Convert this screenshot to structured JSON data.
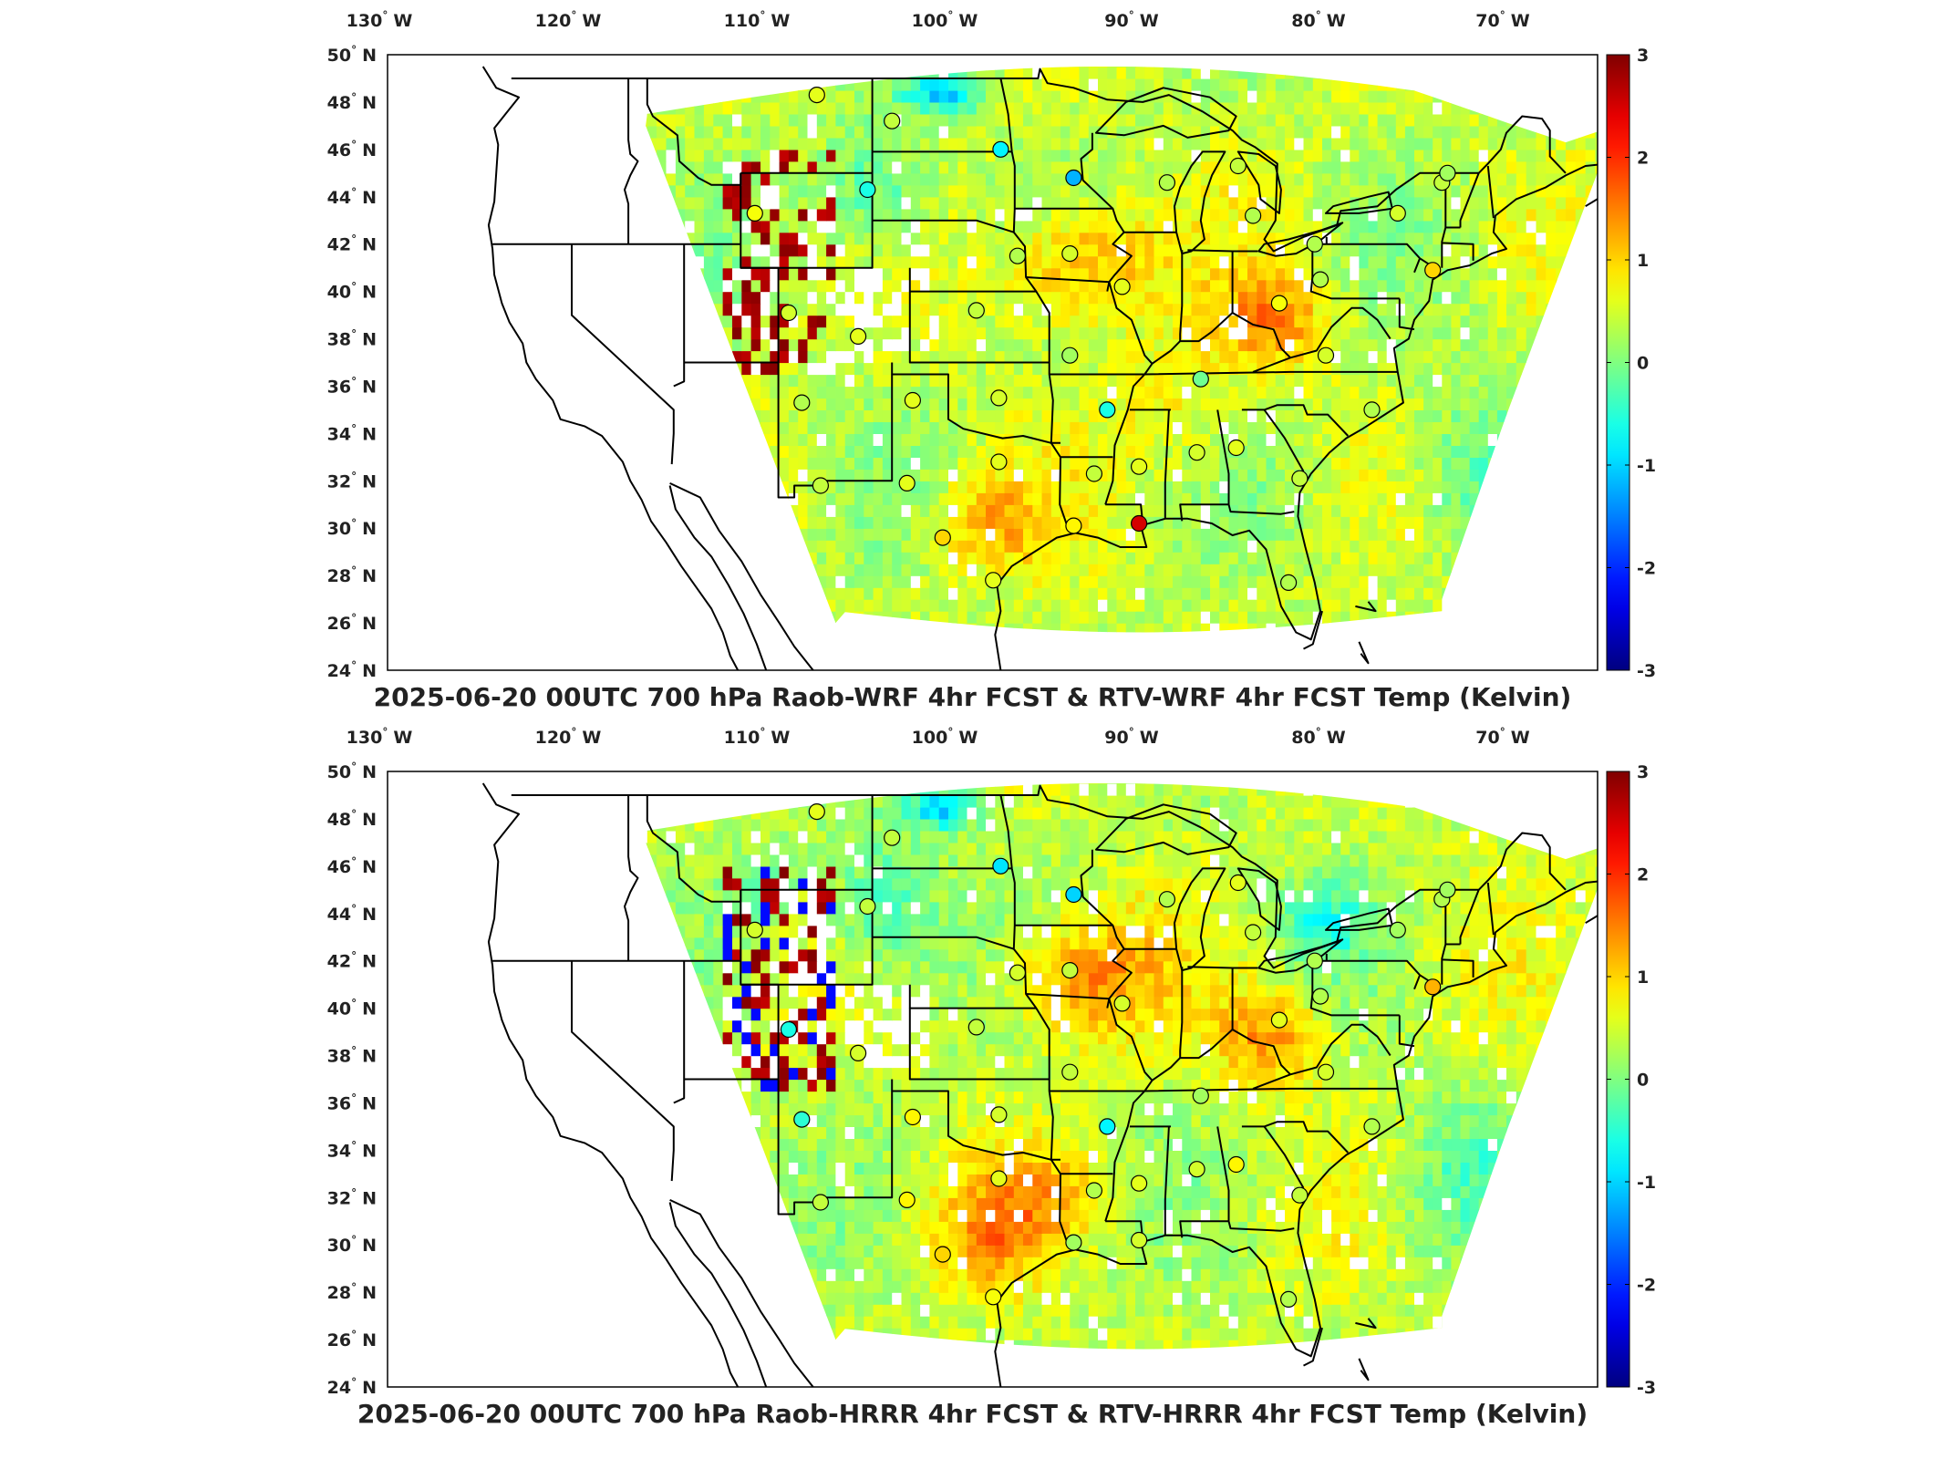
{
  "panels": [
    {
      "title": "2025-06-20 00UTC 700 hPa Raob-WRF 4hr FCST & RTV-WRF 4hr FCST Temp (Kelvin)",
      "stations": [
        [
          -107,
          48.3,
          0.6
        ],
        [
          -103,
          47.2,
          0.4
        ],
        [
          -97.2,
          46.0,
          -0.8
        ],
        [
          -93.3,
          44.8,
          -1.2
        ],
        [
          -104.3,
          44.3,
          -0.6
        ],
        [
          -110.3,
          43.3,
          0.7
        ],
        [
          -96.3,
          41.5,
          0.3
        ],
        [
          -93.5,
          41.6,
          0.5
        ],
        [
          -90.7,
          40.2,
          0.6
        ],
        [
          -88.3,
          44.6,
          0.3
        ],
        [
          -84.5,
          45.3,
          0.4
        ],
        [
          -83.7,
          43.2,
          0.3
        ],
        [
          -80.4,
          42.0,
          0.3
        ],
        [
          -75.9,
          43.3,
          0.5
        ],
        [
          -73.5,
          44.6,
          0.4
        ],
        [
          -108.5,
          39.1,
          0.5
        ],
        [
          -104.8,
          38.1,
          0.6
        ],
        [
          -98.5,
          39.2,
          0.4
        ],
        [
          -93.5,
          37.3,
          0.2
        ],
        [
          -86.5,
          36.3,
          -0.1
        ],
        [
          -82.3,
          39.5,
          0.7
        ],
        [
          -80.1,
          40.5,
          0.3
        ],
        [
          -79.8,
          37.3,
          0.5
        ],
        [
          -107.8,
          35.3,
          0.3
        ],
        [
          -101.9,
          35.4,
          0.6
        ],
        [
          -97.3,
          35.5,
          0.5
        ],
        [
          -91.5,
          35.0,
          -0.6
        ],
        [
          -97.3,
          32.8,
          0.6
        ],
        [
          -102.2,
          31.9,
          0.6
        ],
        [
          -106.8,
          31.8,
          0.4
        ],
        [
          -92.2,
          32.3,
          0.4
        ],
        [
          -89.8,
          32.6,
          0.6
        ],
        [
          -86.7,
          33.2,
          0.5
        ],
        [
          -84.6,
          33.4,
          0.6
        ],
        [
          -81.2,
          32.1,
          0.4
        ],
        [
          -77.3,
          35.0,
          0.3
        ],
        [
          -93.3,
          30.1,
          0.8
        ],
        [
          -89.8,
          30.2,
          2.5
        ],
        [
          -97.6,
          27.8,
          0.6
        ],
        [
          -100.3,
          29.6,
          1.0
        ],
        [
          -81.8,
          27.7,
          0.3
        ],
        [
          -74.0,
          40.9,
          1.0
        ],
        [
          -73.2,
          45.0,
          0.2
        ]
      ]
    },
    {
      "title": "2025-06-20 00UTC 700 hPa Raob-HRRR 4hr FCST & RTV-HRRR 4hr FCST Temp (Kelvin)",
      "stations": [
        [
          -107,
          48.3,
          0.6
        ],
        [
          -103,
          47.2,
          0.4
        ],
        [
          -97.2,
          46.0,
          -0.9
        ],
        [
          -93.3,
          44.8,
          -1.0
        ],
        [
          -104.3,
          44.3,
          0.4
        ],
        [
          -110.3,
          43.3,
          0.5
        ],
        [
          -96.3,
          41.5,
          0.5
        ],
        [
          -93.5,
          41.6,
          0.4
        ],
        [
          -90.7,
          40.2,
          0.5
        ],
        [
          -88.3,
          44.6,
          0.3
        ],
        [
          -84.5,
          45.3,
          0.6
        ],
        [
          -83.7,
          43.2,
          0.4
        ],
        [
          -80.4,
          42.0,
          0.3
        ],
        [
          -75.9,
          43.3,
          0.2
        ],
        [
          -73.5,
          44.6,
          0.3
        ],
        [
          -108.5,
          39.1,
          -0.6
        ],
        [
          -104.8,
          38.1,
          0.5
        ],
        [
          -98.5,
          39.2,
          0.4
        ],
        [
          -93.5,
          37.3,
          0.4
        ],
        [
          -86.5,
          36.3,
          0.2
        ],
        [
          -82.3,
          39.5,
          0.6
        ],
        [
          -80.1,
          40.5,
          0.3
        ],
        [
          -79.8,
          37.3,
          0.5
        ],
        [
          -107.8,
          35.3,
          -0.5
        ],
        [
          -101.9,
          35.4,
          0.8
        ],
        [
          -97.3,
          35.5,
          0.5
        ],
        [
          -91.5,
          35.0,
          -0.8
        ],
        [
          -97.3,
          32.8,
          0.6
        ],
        [
          -102.2,
          31.9,
          0.8
        ],
        [
          -106.8,
          31.8,
          0.4
        ],
        [
          -92.2,
          32.3,
          0.3
        ],
        [
          -89.8,
          32.6,
          0.6
        ],
        [
          -86.7,
          33.2,
          0.5
        ],
        [
          -84.6,
          33.4,
          0.8
        ],
        [
          -81.2,
          32.1,
          0.4
        ],
        [
          -77.3,
          35.0,
          0.3
        ],
        [
          -93.3,
          30.1,
          0.2
        ],
        [
          -89.8,
          30.2,
          0.5
        ],
        [
          -97.6,
          27.8,
          0.7
        ],
        [
          -100.3,
          29.6,
          1.0
        ],
        [
          -81.8,
          27.7,
          0.3
        ],
        [
          -74.0,
          40.9,
          1.2
        ],
        [
          -73.2,
          45.0,
          0.2
        ]
      ]
    }
  ],
  "lon_ticks": [
    "130",
    "120",
    "110",
    "100",
    "90",
    "80",
    "70"
  ],
  "lat_ticks": [
    "50",
    "48",
    "46",
    "44",
    "42",
    "40",
    "38",
    "36",
    "34",
    "32",
    "30",
    "28",
    "26",
    "24"
  ],
  "lon_suffix": "W",
  "lat_suffix": "N",
  "degree_symbol": "°",
  "colorbar": {
    "ticks": [
      "3",
      "2",
      "1",
      "0",
      "-1",
      "-2",
      "-3"
    ],
    "range": [
      -3,
      3
    ]
  },
  "colors": {
    "land_outline": "#000000",
    "frame": "#000000",
    "missing": "#ffffff"
  }
}
